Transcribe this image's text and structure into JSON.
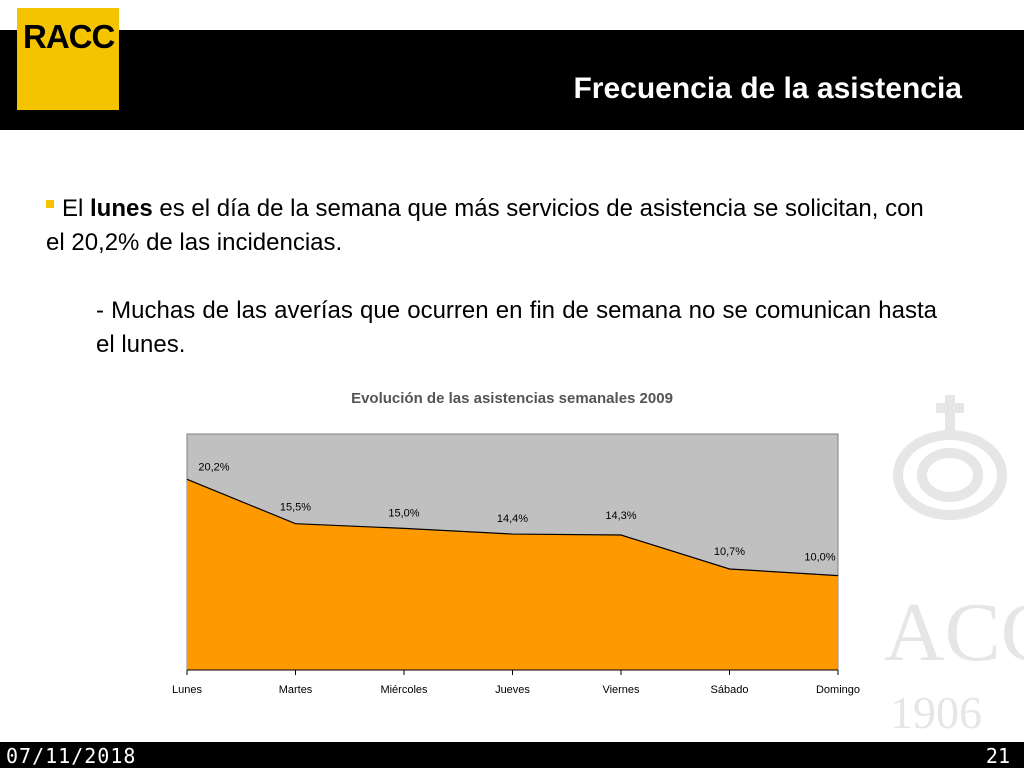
{
  "header": {
    "logo_text": "RACC",
    "title": "Frecuencia de la asistencia"
  },
  "bullet": {
    "part1": "El ",
    "emphasis": "lunes",
    "part2": " es el día de la semana que más servicios de asistencia se solicitan, con el 20,2% de las incidencias."
  },
  "sub_bullet": "- Muchas de las averías que ocurren en fin de semana no se comunican hasta el lunes.",
  "watermark": {
    "brand": "ACC",
    "year": "1906"
  },
  "footer": {
    "date": "07/11/2018",
    "page": "21"
  },
  "colors": {
    "brand_yellow": "#f5c400",
    "area_fill": "#ff9900",
    "plot_bg": "#c0c0c0"
  },
  "chart_data": {
    "type": "area",
    "title": "Evolución de las asistencias semanales 2009",
    "categories": [
      "Lunes",
      "Martes",
      "Miércoles",
      "Jueves",
      "Viernes",
      "Sábado",
      "Domingo"
    ],
    "values": [
      20.2,
      15.5,
      15.0,
      14.4,
      14.3,
      10.7,
      10.0
    ],
    "data_labels": [
      "20,2%",
      "15,5%",
      "15,0%",
      "14,4%",
      "14,3%",
      "10,7%",
      "10,0%"
    ],
    "ylim": [
      0,
      25
    ],
    "grid": false,
    "legend": "none"
  }
}
